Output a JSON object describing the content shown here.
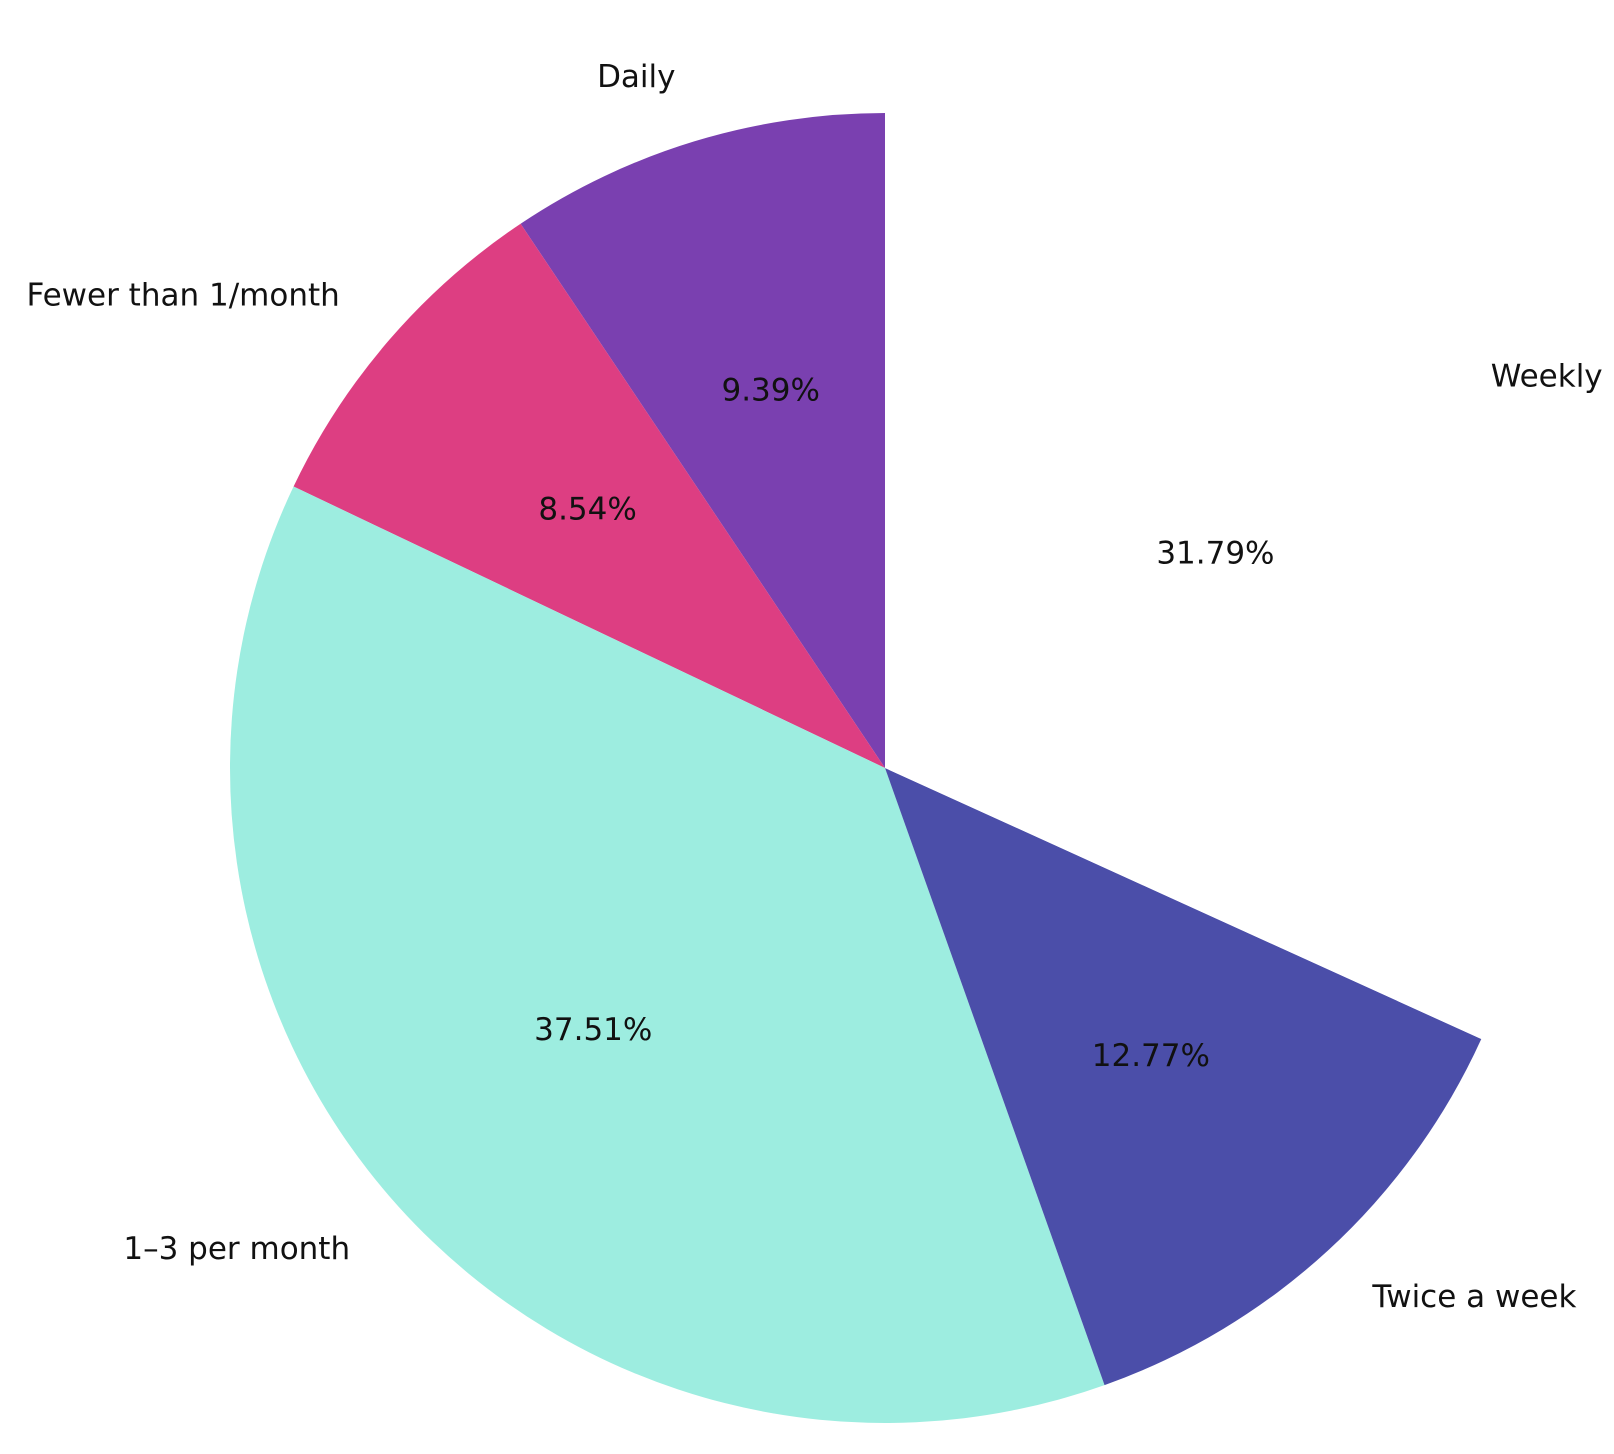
{
  "chart_data": {
    "type": "pie",
    "title": "",
    "slices": [
      {
        "label": "Daily",
        "value": 9.39,
        "pct_label": "9.39%",
        "color": "#7a40b0"
      },
      {
        "label": "Fewer than 1/month",
        "value": 8.54,
        "pct_label": "8.54%",
        "color": "#dd3e82"
      },
      {
        "label": "1–3 per month",
        "value": 37.51,
        "pct_label": "37.51%",
        "color": "#9dede0"
      },
      {
        "label": "Twice a week",
        "value": 12.77,
        "pct_label": "12.77%",
        "color": "#4b4ea9"
      },
      {
        "label": "Weekly",
        "value": 31.79,
        "pct_label": "31.79%",
        "color": "#ffffff"
      }
    ],
    "start_angle_deg": 90,
    "direction": "counterclockwise",
    "legend": "none"
  }
}
